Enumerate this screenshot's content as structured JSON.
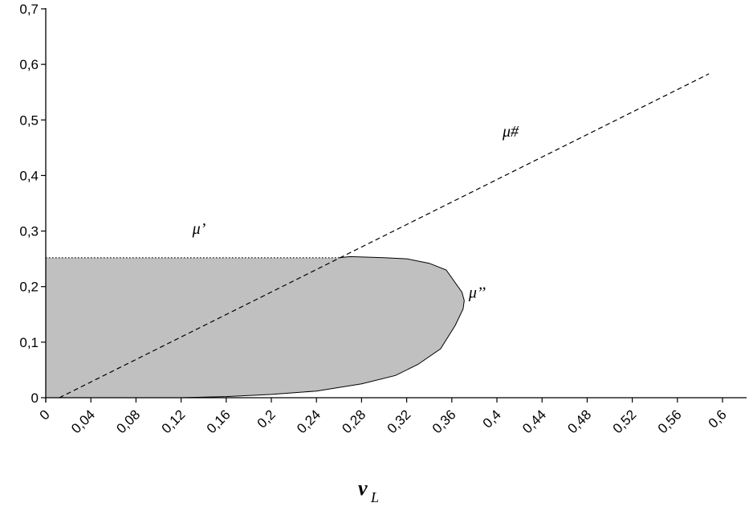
{
  "chart_data": {
    "type": "area",
    "title": "",
    "xlabel": "v",
    "xlabel_subscript": "L",
    "ylabel": "",
    "xlim": [
      0,
      0.6
    ],
    "ylim": [
      0,
      0.7
    ],
    "grid": false,
    "x_ticks": [
      {
        "v": 0,
        "label": "0"
      },
      {
        "v": 0.04,
        "label": "0,04"
      },
      {
        "v": 0.08,
        "label": "0,08"
      },
      {
        "v": 0.12,
        "label": "0,12"
      },
      {
        "v": 0.16,
        "label": "0,16"
      },
      {
        "v": 0.2,
        "label": "0,2"
      },
      {
        "v": 0.24,
        "label": "0,24"
      },
      {
        "v": 0.28,
        "label": "0,28"
      },
      {
        "v": 0.32,
        "label": "0,32"
      },
      {
        "v": 0.36,
        "label": "0,36"
      },
      {
        "v": 0.4,
        "label": "0,4"
      },
      {
        "v": 0.44,
        "label": "0,44"
      },
      {
        "v": 0.48,
        "label": "0,48"
      },
      {
        "v": 0.52,
        "label": "0,52"
      },
      {
        "v": 0.56,
        "label": "0,56"
      },
      {
        "v": 0.6,
        "label": "0,6"
      }
    ],
    "y_ticks": [
      {
        "v": 0,
        "label": "0"
      },
      {
        "v": 0.1,
        "label": "0,1"
      },
      {
        "v": 0.2,
        "label": "0,2"
      },
      {
        "v": 0.3,
        "label": "0,3"
      },
      {
        "v": 0.4,
        "label": "0,4"
      },
      {
        "v": 0.5,
        "label": "0,5"
      },
      {
        "v": 0.6,
        "label": "0,6"
      },
      {
        "v": 0.7,
        "label": "0,7"
      }
    ],
    "region": {
      "fill": "#c0c0c0",
      "boundary": [
        [
          0,
          0
        ],
        [
          0.12,
          0
        ],
        [
          0.16,
          0.002
        ],
        [
          0.2,
          0.006
        ],
        [
          0.24,
          0.012
        ],
        [
          0.28,
          0.025
        ],
        [
          0.31,
          0.04
        ],
        [
          0.33,
          0.06
        ],
        [
          0.35,
          0.088
        ],
        [
          0.363,
          0.13
        ],
        [
          0.37,
          0.16
        ],
        [
          0.371,
          0.175
        ],
        [
          0.369,
          0.19
        ],
        [
          0.355,
          0.23
        ],
        [
          0.34,
          0.242
        ],
        [
          0.32,
          0.25
        ],
        [
          0.3,
          0.252
        ],
        [
          0.27,
          0.254
        ],
        [
          0.26,
          0.252
        ],
        [
          0,
          0.252
        ]
      ]
    },
    "series": [
      {
        "id": "mu_prime_line",
        "style": "dotted",
        "color": "#000000",
        "points": [
          [
            0,
            0.252
          ],
          [
            0.26,
            0.252
          ]
        ]
      },
      {
        "id": "mu_hash_line",
        "style": "dashed",
        "color": "#000000",
        "points": [
          [
            0.012,
            0
          ],
          [
            0.588,
            0.583
          ]
        ]
      }
    ],
    "annotations": [
      {
        "text": "μ’",
        "x": 0.13,
        "y": 0.295
      },
      {
        "text": "μ’’",
        "x": 0.375,
        "y": 0.18
      },
      {
        "text": "μ#",
        "x": 0.405,
        "y": 0.47
      }
    ]
  }
}
